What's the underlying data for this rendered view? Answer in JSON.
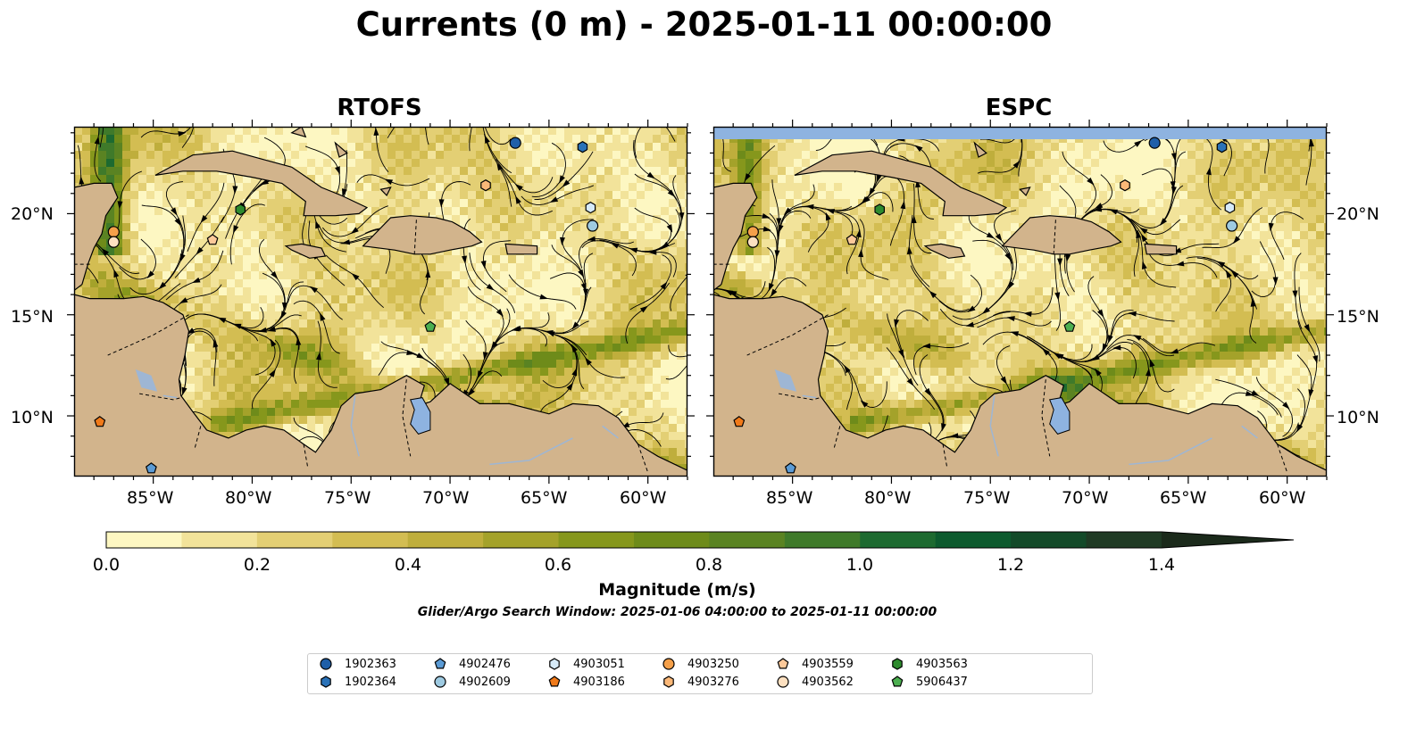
{
  "title": "Currents (0 m) - 2025-01-11 00:00:00",
  "panels": [
    {
      "title": "RTOFS"
    },
    {
      "title": "ESPC"
    }
  ],
  "axes": {
    "lat_ticks": [
      "20°N",
      "15°N",
      "10°N"
    ],
    "lon_ticks": [
      "85°W",
      "80°W",
      "75°W",
      "70°W",
      "65°W",
      "60°W"
    ]
  },
  "colorbar": {
    "label": "Magnitude (m/s)",
    "ticks": [
      "0.0",
      "0.2",
      "0.4",
      "0.6",
      "0.8",
      "1.0",
      "1.2",
      "1.4"
    ],
    "range": [
      0,
      1.5
    ],
    "extend": "max",
    "colors": [
      "#fdf7c2",
      "#f2e39a",
      "#e3cf74",
      "#d3bd52",
      "#bfae3c",
      "#a4a22a",
      "#86971c",
      "#6e8b1a",
      "#5a8322",
      "#3f7a2a",
      "#1d6a30",
      "#0c5a2e",
      "#134a29",
      "#1f3a24",
      "#1b2a1b"
    ]
  },
  "search_window": "Glider/Argo Search Window: 2025-01-06 04:00:00 to 2025-01-11 00:00:00",
  "map_colors": {
    "land": "#d2b48c",
    "water_body": "#8eb3e0",
    "river": "#9eb6d4",
    "nodata": "#8eb3e0"
  },
  "legend": [
    {
      "id": "1902363",
      "marker": "circle",
      "color": "#1f5fa8"
    },
    {
      "id": "1902364",
      "marker": "hexagon",
      "color": "#2a72b8"
    },
    {
      "id": "4902476",
      "marker": "pentagon",
      "color": "#5b9bd5"
    },
    {
      "id": "4902609",
      "marker": "circle",
      "color": "#9ecae1"
    },
    {
      "id": "4903051",
      "marker": "hexagon",
      "color": "#d6eaf8"
    },
    {
      "id": "4903186",
      "marker": "pentagon",
      "color": "#f07a1a"
    },
    {
      "id": "4903250",
      "marker": "circle",
      "color": "#f5a04a"
    },
    {
      "id": "4903276",
      "marker": "hexagon",
      "color": "#fbb878"
    },
    {
      "id": "4903559",
      "marker": "pentagon",
      "color": "#fcc99a"
    },
    {
      "id": "4903562",
      "marker": "circle",
      "color": "#fde0c0"
    },
    {
      "id": "4903563",
      "marker": "hexagon",
      "color": "#2e8b2e"
    },
    {
      "id": "5906437",
      "marker": "pentagon",
      "color": "#4caf50"
    }
  ],
  "floats": [
    {
      "id": "1902363",
      "lon": -66.7,
      "lat": 23.5
    },
    {
      "id": "1902364",
      "lon": -63.3,
      "lat": 23.3
    },
    {
      "id": "4902476",
      "lon": -85.1,
      "lat": 7.4
    },
    {
      "id": "4902609",
      "lon": -62.8,
      "lat": 19.4
    },
    {
      "id": "4903051",
      "lon": -62.9,
      "lat": 20.3
    },
    {
      "id": "4903186",
      "lon": -87.7,
      "lat": 9.7
    },
    {
      "id": "4903250",
      "lon": -87.0,
      "lat": 19.1
    },
    {
      "id": "4903276",
      "lon": -68.2,
      "lat": 21.4
    },
    {
      "id": "4903559",
      "lon": -82.0,
      "lat": 18.7
    },
    {
      "id": "4903562",
      "lon": -87.0,
      "lat": 18.6
    },
    {
      "id": "4903563",
      "lon": -80.6,
      "lat": 20.2
    },
    {
      "id": "5906437",
      "lon": -71.0,
      "lat": 14.4
    }
  ],
  "map_extent": {
    "lon": [
      -89,
      -58
    ],
    "lat": [
      7,
      24.3
    ]
  }
}
